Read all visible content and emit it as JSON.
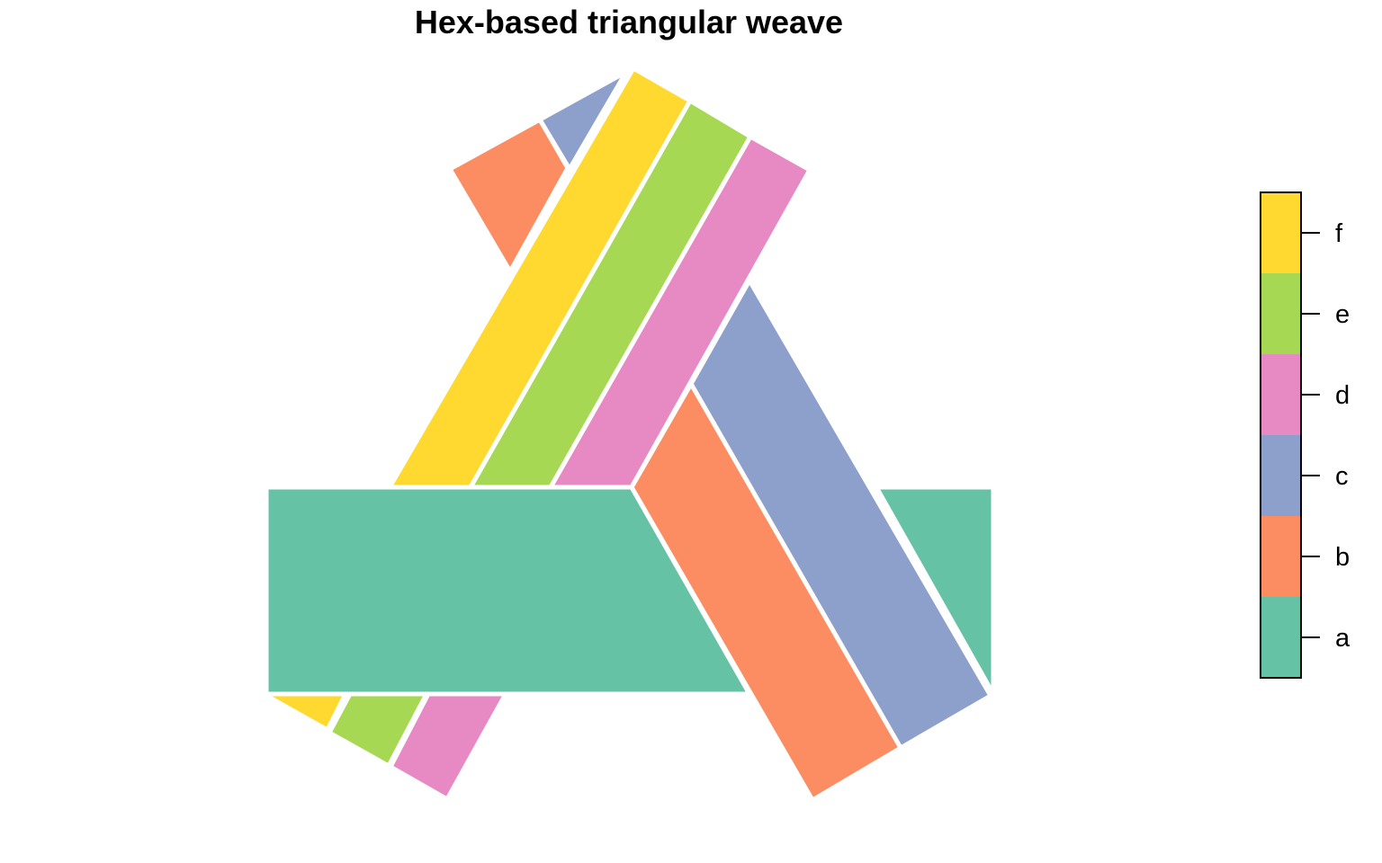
{
  "title": "Hex-based triangular weave",
  "colors": {
    "a": "#66C2A5",
    "b": "#FC8D62",
    "c": "#8DA0CB",
    "d": "#E78AC3",
    "e": "#A6D854",
    "f": "#FFD92F"
  },
  "legend": {
    "items": [
      {
        "label": "f",
        "key": "f"
      },
      {
        "label": "e",
        "key": "e"
      },
      {
        "label": "d",
        "key": "d"
      },
      {
        "label": "c",
        "key": "c"
      },
      {
        "label": "b",
        "key": "b"
      },
      {
        "label": "a",
        "key": "a"
      }
    ]
  },
  "strands": [
    "f",
    "e",
    "d",
    "c",
    "b",
    "a"
  ]
}
